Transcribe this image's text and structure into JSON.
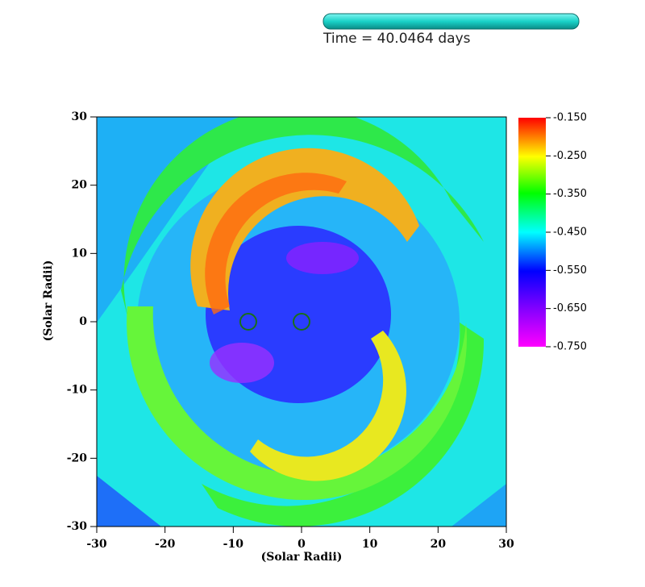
{
  "chart_data": {
    "type": "image",
    "time_label": "Time = 40.0464 days",
    "xlabel": "(Solar Radii)",
    "ylabel": "(Solar Radii)",
    "xlim": [
      -30,
      30
    ],
    "ylim": [
      -30,
      30
    ],
    "xticks": [
      -30,
      -20,
      -10,
      0,
      10,
      20,
      30
    ],
    "yticks": [
      -30,
      -20,
      -10,
      0,
      10,
      20,
      30
    ],
    "markers": {
      "color": "#1a6e1a",
      "x": [
        -7.8,
        0
      ],
      "y": [
        0,
        0
      ]
    },
    "colorbar": {
      "clim": [
        -0.75,
        -0.15
      ],
      "ticks": [
        {
          "value": -0.15,
          "label": "-0.150"
        },
        {
          "value": -0.25,
          "label": "-0.250"
        },
        {
          "value": -0.35,
          "label": "-0.350"
        },
        {
          "value": -0.45,
          "label": "-0.450"
        },
        {
          "value": -0.55,
          "label": "-0.550"
        },
        {
          "value": -0.65,
          "label": "-0.650"
        },
        {
          "value": -0.75,
          "label": "-0.750"
        }
      ]
    }
  }
}
